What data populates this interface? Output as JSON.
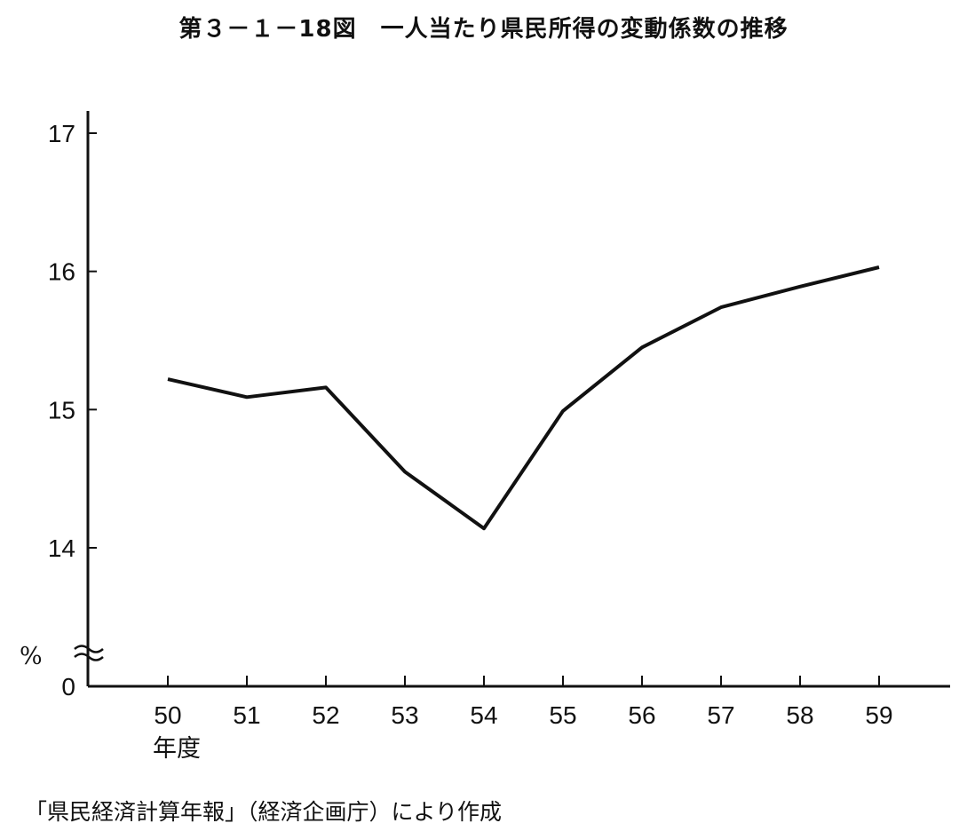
{
  "title": "第３－１－18図　一人当たり県民所得の変動係数の推移",
  "source": "「県民経済計算年報」（経済企画庁）により作成",
  "chart_data": {
    "type": "line",
    "title": "第３－１－18図　一人当たり県民所得の変動係数の推移",
    "categories": [
      "50",
      "51",
      "52",
      "53",
      "54",
      "55",
      "56",
      "57",
      "58",
      "59"
    ],
    "x": [
      50,
      51,
      52,
      53,
      54,
      55,
      56,
      57,
      58,
      59
    ],
    "values": [
      15.22,
      15.09,
      15.16,
      14.55,
      14.14,
      14.99,
      15.45,
      15.74,
      15.89,
      16.03
    ],
    "xlabel": "年度",
    "ylabel": "%",
    "yticks": [
      0,
      14,
      15,
      16,
      17
    ],
    "ylim": [
      13.0,
      17.1
    ],
    "axis_break": true,
    "grid": false,
    "line_color": "#111111"
  }
}
